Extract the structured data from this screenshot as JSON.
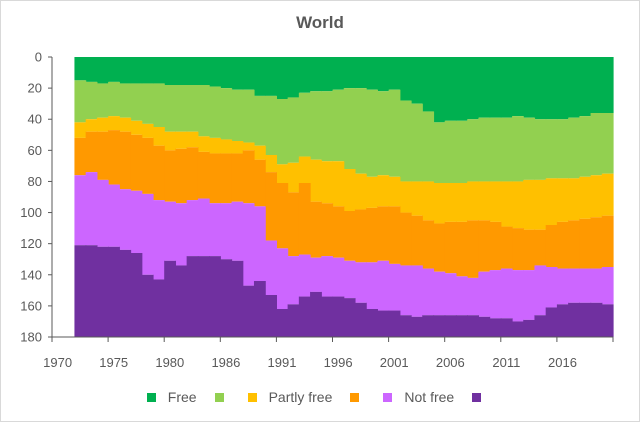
{
  "chart_data": {
    "type": "area",
    "stacked": true,
    "step": true,
    "title": "World",
    "xlabel": "",
    "ylabel": "",
    "y_inverted": true,
    "ylim": [
      0,
      180
    ],
    "yticks": [
      0,
      20,
      40,
      60,
      80,
      100,
      120,
      140,
      160,
      180
    ],
    "xtick_labels": [
      "1970",
      "1975",
      "1980",
      "1986",
      "1991",
      "1996",
      "2001",
      "2006",
      "2011",
      "2016"
    ],
    "grid": false,
    "legend_position": "bottom",
    "categories": [
      1970,
      1971,
      1972,
      1973,
      1974,
      1975,
      1976,
      1977,
      1978,
      1979,
      1980,
      1981,
      1983,
      1984,
      1985,
      1986,
      1987,
      1988,
      1989,
      1990,
      1991,
      1992,
      1993,
      1994,
      1995,
      1996,
      1997,
      1998,
      1999,
      2000,
      2001,
      2002,
      2003,
      2004,
      2005,
      2006,
      2007,
      2008,
      2009,
      2010,
      2011,
      2012,
      2013,
      2014,
      2015,
      2016,
      2017,
      2018,
      2019,
      2020
    ],
    "series": [
      {
        "name": "Free",
        "color": "#00b050",
        "values": [
          null,
          null,
          15,
          16,
          17,
          16,
          17,
          17,
          17,
          17,
          18,
          18,
          18,
          18,
          19,
          20,
          21,
          21,
          25,
          25,
          27,
          26,
          23,
          22,
          22,
          21,
          20,
          20,
          21,
          22,
          21,
          28,
          30,
          35,
          42,
          41,
          41,
          40,
          39,
          39,
          39,
          38,
          39,
          40,
          40,
          40,
          39,
          38,
          36,
          36
        ]
      },
      {
        "name": "",
        "color": "#92d050",
        "values": [
          null,
          null,
          27,
          24,
          22,
          22,
          22,
          24,
          26,
          28,
          30,
          30,
          30,
          33,
          33,
          33,
          33,
          34,
          32,
          38,
          42,
          42,
          41,
          44,
          45,
          46,
          52,
          55,
          56,
          54,
          56,
          52,
          50,
          45,
          39,
          40,
          40,
          40,
          41,
          41,
          41,
          42,
          40,
          39,
          38,
          38,
          39,
          39,
          40,
          39
        ]
      },
      {
        "name": "Partly free",
        "color": "#ffc000",
        "values": [
          null,
          null,
          10,
          8,
          9,
          9,
          9,
          9,
          9,
          12,
          12,
          11,
          10,
          10,
          10,
          9,
          8,
          5,
          9,
          11,
          12,
          19,
          17,
          27,
          27,
          29,
          27,
          23,
          20,
          20,
          19,
          20,
          22,
          25,
          26,
          25,
          25,
          25,
          25,
          26,
          29,
          30,
          32,
          32,
          30,
          28,
          27,
          27,
          27,
          27
        ]
      },
      {
        "name": "",
        "color": "#ff9900",
        "values": [
          null,
          null,
          24,
          26,
          31,
          35,
          37,
          36,
          36,
          35,
          33,
          35,
          34,
          30,
          32,
          32,
          31,
          34,
          30,
          44,
          42,
          41,
          46,
          36,
          34,
          33,
          32,
          34,
          35,
          35,
          37,
          34,
          32,
          31,
          31,
          33,
          35,
          37,
          33,
          31,
          27,
          27,
          26,
          23,
          27,
          30,
          31,
          32,
          33,
          33
        ]
      },
      {
        "name": "Not free",
        "color": "#cc66ff",
        "values": [
          null,
          null,
          45,
          47,
          43,
          40,
          39,
          40,
          52,
          51,
          38,
          40,
          36,
          37,
          34,
          36,
          38,
          53,
          48,
          35,
          39,
          31,
          27,
          22,
          26,
          25,
          24,
          26,
          30,
          32,
          30,
          32,
          33,
          30,
          28,
          27,
          25,
          24,
          29,
          31,
          32,
          33,
          32,
          32,
          26,
          23,
          22,
          22,
          22,
          24
        ]
      },
      {
        "name": "",
        "color": "#7030a0",
        "values": [
          null,
          null,
          59,
          59,
          58,
          58,
          56,
          54,
          40,
          37,
          49,
          46,
          52,
          52,
          52,
          50,
          49,
          33,
          36,
          27,
          18,
          21,
          26,
          29,
          26,
          26,
          25,
          22,
          18,
          17,
          17,
          14,
          13,
          14,
          14,
          14,
          14,
          14,
          13,
          12,
          12,
          10,
          11,
          14,
          19,
          21,
          22,
          22,
          22,
          21
        ]
      }
    ]
  }
}
